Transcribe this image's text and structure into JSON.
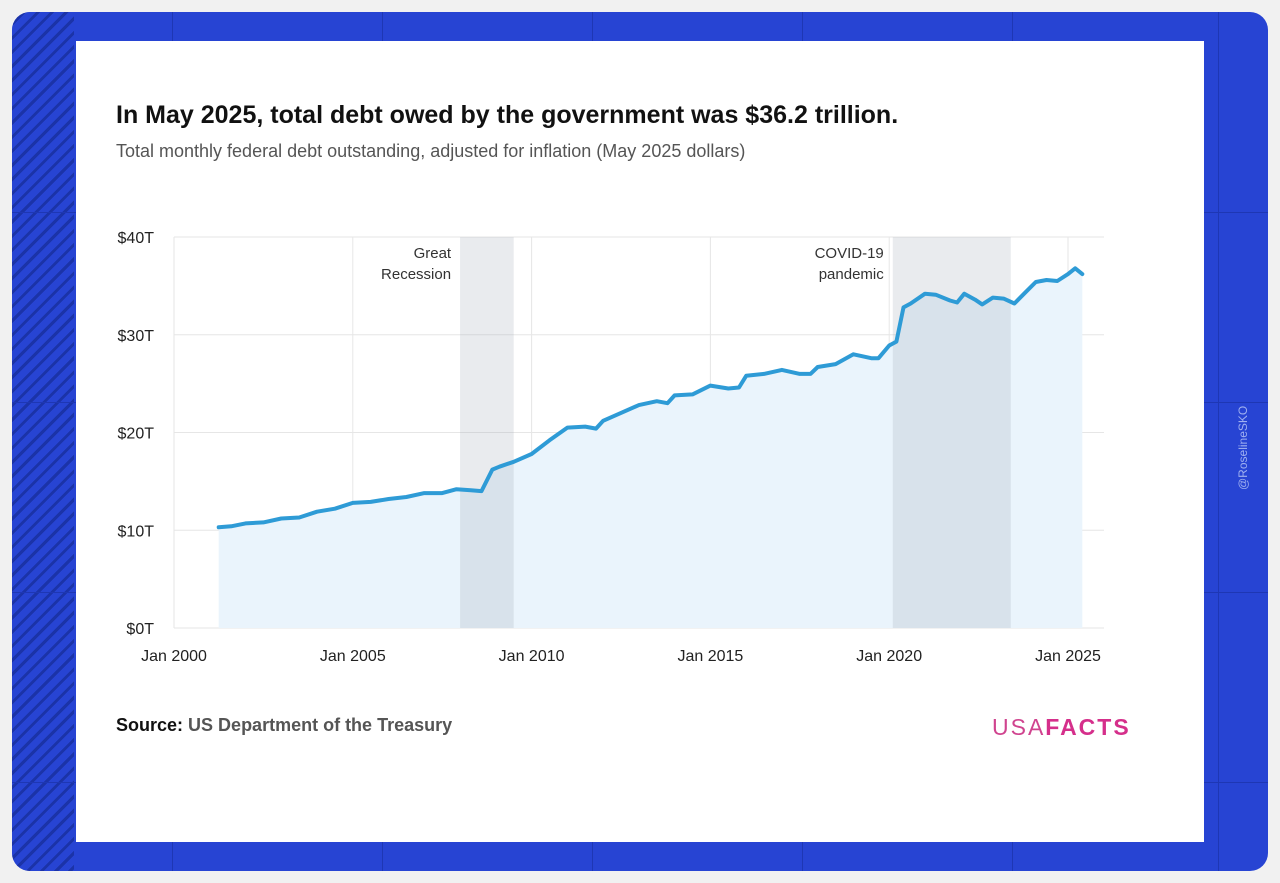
{
  "title": "In May 2025, total debt owed by the government was $36.2 trillion.",
  "subtitle": "Total monthly federal debt outstanding, adjusted for inflation (May 2025 dollars)",
  "source_label": "Source:",
  "source_text": "US Department of the Treasury",
  "logo": {
    "usa": "USA",
    "facts": "FACTS"
  },
  "watermark": "@RoselineSKO",
  "colors": {
    "line": "#2e9bd6",
    "fill": "#eaf4fc",
    "shade": "#e4e4e4",
    "frame": "#2744d3",
    "logo": "#d52f8b"
  },
  "chart_data": {
    "type": "area",
    "title": "In May 2025, total debt owed by the government was $36.2 trillion.",
    "xlabel": "",
    "ylabel": "",
    "xlim": [
      2000,
      2026
    ],
    "ylim": [
      0,
      40
    ],
    "grid": true,
    "x_ticks": [
      {
        "value": 2000,
        "label": "Jan 2000"
      },
      {
        "value": 2005,
        "label": "Jan 2005"
      },
      {
        "value": 2010,
        "label": "Jan 2010"
      },
      {
        "value": 2015,
        "label": "Jan 2015"
      },
      {
        "value": 2020,
        "label": "Jan 2020"
      },
      {
        "value": 2025,
        "label": "Jan 2025"
      }
    ],
    "y_ticks": [
      {
        "value": 0,
        "label": "$0T"
      },
      {
        "value": 10,
        "label": "$10T"
      },
      {
        "value": 20,
        "label": "$20T"
      },
      {
        "value": 30,
        "label": "$30T"
      },
      {
        "value": 40,
        "label": "$40T"
      }
    ],
    "shaded_periods": [
      {
        "label_lines": [
          "Great",
          "Recession"
        ],
        "start": 2008.0,
        "end": 2009.5
      },
      {
        "label_lines": [
          "COVID-19",
          "pandemic"
        ],
        "start": 2020.1,
        "end": 2023.4
      }
    ],
    "series": [
      {
        "name": "Total federal debt outstanding (trillions, May 2025 dollars)",
        "x": [
          2001.25,
          2001.6,
          2002,
          2002.5,
          2003,
          2003.5,
          2004,
          2004.5,
          2005,
          2005.5,
          2006,
          2006.5,
          2007,
          2007.5,
          2007.9,
          2008.3,
          2008.6,
          2008.9,
          2009.1,
          2009.5,
          2010,
          2010.5,
          2011,
          2011.5,
          2011.8,
          2012,
          2012.5,
          2013,
          2013.5,
          2013.8,
          2014,
          2014.5,
          2015,
          2015.5,
          2015.8,
          2016,
          2016.5,
          2017,
          2017.5,
          2017.8,
          2018,
          2018.5,
          2019,
          2019.5,
          2019.7,
          2020,
          2020.2,
          2020.4,
          2020.6,
          2021,
          2021.3,
          2021.7,
          2021.9,
          2022.1,
          2022.4,
          2022.6,
          2022.9,
          2023.2,
          2023.5,
          2023.8,
          2024.1,
          2024.4,
          2024.7,
          2025,
          2025.2,
          2025.4
        ],
        "values": [
          10.3,
          10.4,
          10.7,
          10.8,
          11.2,
          11.3,
          11.9,
          12.2,
          12.8,
          12.9,
          13.2,
          13.4,
          13.8,
          13.8,
          14.2,
          14.1,
          14.0,
          16.2,
          16.5,
          17.0,
          17.8,
          19.2,
          20.5,
          20.6,
          20.4,
          21.2,
          22.0,
          22.8,
          23.2,
          23.0,
          23.8,
          23.9,
          24.8,
          24.5,
          24.6,
          25.8,
          26.0,
          26.4,
          26.0,
          26.0,
          26.7,
          27.0,
          28.0,
          27.6,
          27.6,
          28.9,
          29.3,
          32.8,
          33.2,
          34.2,
          34.1,
          33.5,
          33.3,
          34.2,
          33.6,
          33.1,
          33.8,
          33.7,
          33.2,
          34.3,
          35.4,
          35.6,
          35.5,
          36.2,
          36.8,
          36.2
        ]
      }
    ]
  }
}
